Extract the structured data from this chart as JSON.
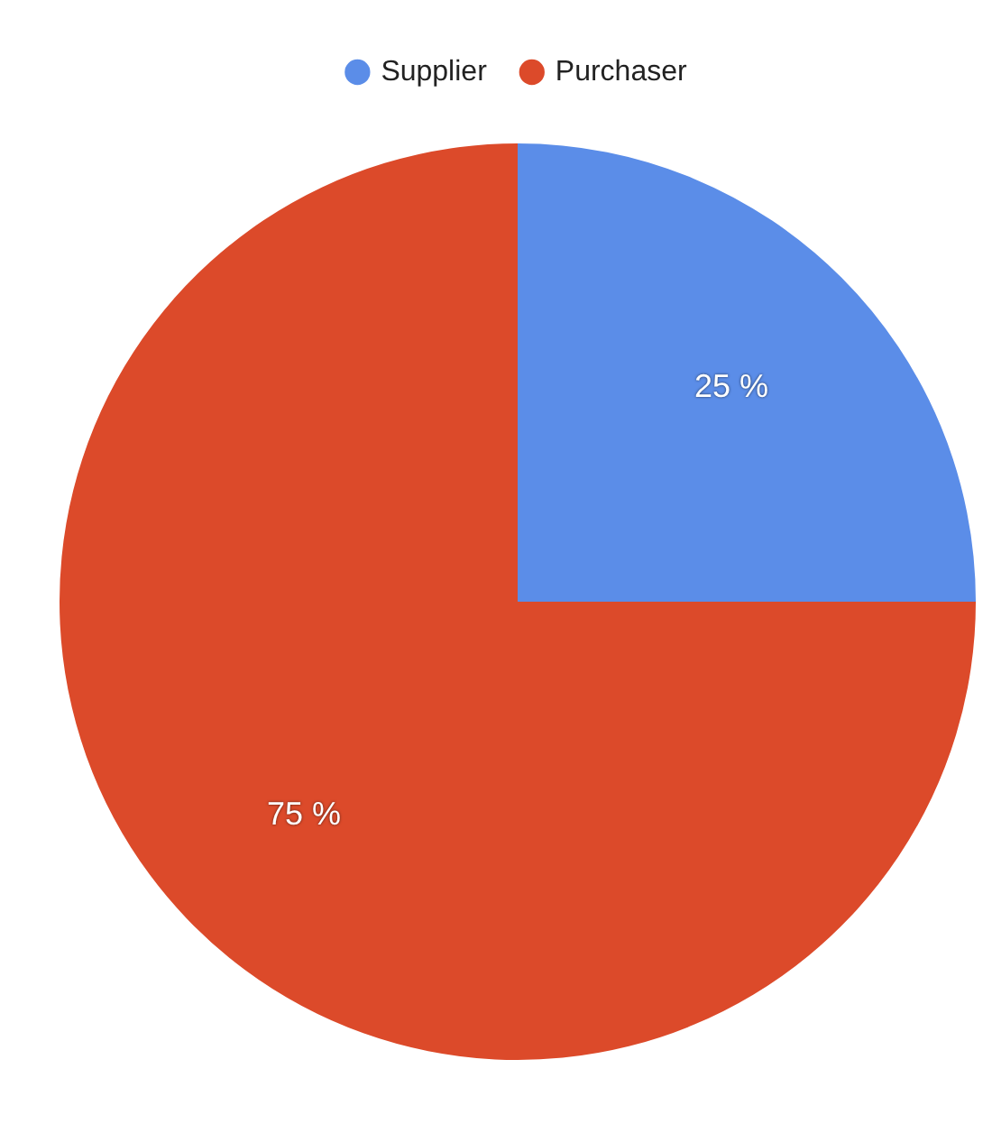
{
  "chart_data": {
    "type": "pie",
    "categories": [
      "Supplier",
      "Purchaser"
    ],
    "values": [
      25,
      75
    ],
    "colors": [
      "#5b8de8",
      "#dc4a2a"
    ],
    "value_labels": [
      "25 %",
      "75 %"
    ],
    "legend": "top"
  }
}
